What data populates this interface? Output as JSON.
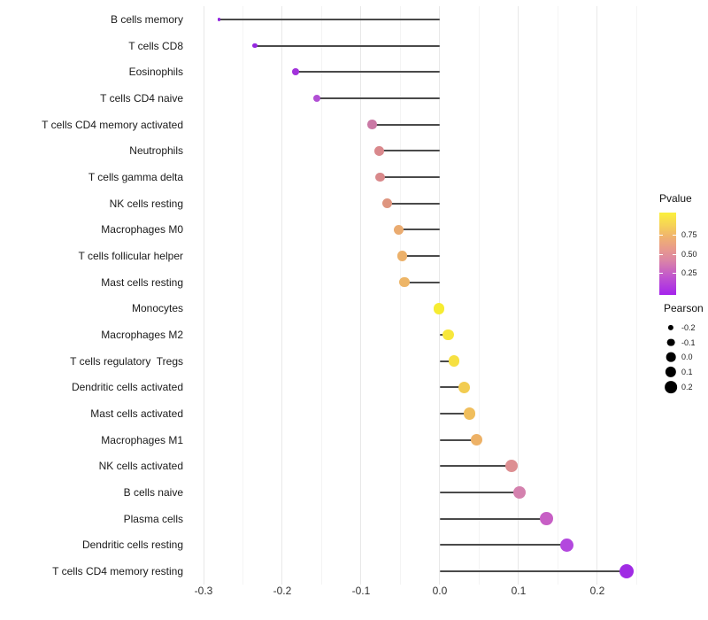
{
  "chart_data": {
    "type": "scatter",
    "variant": "lollipop",
    "title": "",
    "xlabel": "",
    "ylabel": "",
    "xlim": [
      -0.309,
      0.263
    ],
    "grid": true,
    "x_ticks": [
      "-0.3",
      "-0.2",
      "-0.1",
      "0.0",
      "0.1",
      "0.2"
    ],
    "categories": [
      "B cells memory",
      "T cells CD8",
      "Eosinophils",
      "T cells CD4 naive",
      "T cells CD4 memory activated",
      "Neutrophils",
      "T cells gamma delta",
      "NK cells resting",
      "Macrophages M0",
      "T cells follicular helper",
      "Mast cells resting",
      "Monocytes",
      "Macrophages M2",
      "T cells regulatory  Tregs",
      "Dendritic cells activated",
      "Mast cells activated",
      "Macrophages M1",
      "NK cells activated",
      "B cells naive",
      "Plasma cells",
      "Dendritic cells resting",
      "T cells CD4 memory resting"
    ],
    "points": [
      {
        "label": "B cells memory",
        "pearson": -0.28,
        "color": "#8F22DC"
      },
      {
        "label": "T cells CD8",
        "pearson": -0.235,
        "color": "#9527E0"
      },
      {
        "label": "Eosinophils",
        "pearson": -0.183,
        "color": "#A233DB"
      },
      {
        "label": "T cells CD4 naive",
        "pearson": -0.156,
        "color": "#B14FD4"
      },
      {
        "label": "T cells CD4 memory activated",
        "pearson": -0.086,
        "color": "#CA79A5"
      },
      {
        "label": "Neutrophils",
        "pearson": -0.077,
        "color": "#D9888C"
      },
      {
        "label": "T cells gamma delta",
        "pearson": -0.076,
        "color": "#D9898B"
      },
      {
        "label": "NK cells resting",
        "pearson": -0.067,
        "color": "#DE957F"
      },
      {
        "label": "Macrophages M0",
        "pearson": -0.052,
        "color": "#EAAB70"
      },
      {
        "label": "T cells follicular helper",
        "pearson": -0.048,
        "color": "#ECB16B"
      },
      {
        "label": "Mast cells resting",
        "pearson": -0.045,
        "color": "#EDB567"
      },
      {
        "label": "Monocytes",
        "pearson": -0.001,
        "color": "#F6EC32"
      },
      {
        "label": "Macrophages M2",
        "pearson": 0.011,
        "color": "#F7E73C"
      },
      {
        "label": "T cells regulatory  Tregs",
        "pearson": 0.018,
        "color": "#F6E041"
      },
      {
        "label": "Dendritic cells activated",
        "pearson": 0.031,
        "color": "#F2CC51"
      },
      {
        "label": "Mast cells activated",
        "pearson": 0.038,
        "color": "#F0BE5C"
      },
      {
        "label": "Macrophages M1",
        "pearson": 0.047,
        "color": "#EDB166"
      },
      {
        "label": "NK cells activated",
        "pearson": 0.091,
        "color": "#DD8F92"
      },
      {
        "label": "B cells naive",
        "pearson": 0.101,
        "color": "#D481AE"
      },
      {
        "label": "Plasma cells",
        "pearson": 0.135,
        "color": "#C75FC5"
      },
      {
        "label": "Dendritic cells resting",
        "pearson": 0.161,
        "color": "#B348DE"
      },
      {
        "label": "T cells CD4 memory resting",
        "pearson": 0.237,
        "color": "#A02BE4"
      }
    ],
    "legend": {
      "pvalue": {
        "title": "Pvalue",
        "tick_labels": [
          "0.75",
          "0.50",
          "0.25"
        ],
        "gradient_top": "#FBF03C",
        "gradient_bottom": "#A524EC"
      },
      "pearson": {
        "title": "Pearson",
        "size_labels": [
          "-0.2",
          "-0.1",
          "0.0",
          "0.1",
          "0.2"
        ],
        "size_values": [
          -0.2,
          -0.1,
          0.0,
          0.1,
          0.2
        ],
        "dot_color": "#000000"
      }
    },
    "stem_color": "#4a4a4a",
    "grid_major_color": "#e8e8e8",
    "grid_minor_color": "#f4f4f4"
  }
}
